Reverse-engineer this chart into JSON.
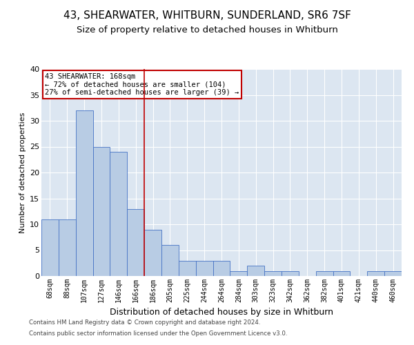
{
  "title1": "43, SHEARWATER, WHITBURN, SUNDERLAND, SR6 7SF",
  "title2": "Size of property relative to detached houses in Whitburn",
  "xlabel": "Distribution of detached houses by size in Whitburn",
  "ylabel": "Number of detached properties",
  "categories": [
    "68sqm",
    "88sqm",
    "107sqm",
    "127sqm",
    "146sqm",
    "166sqm",
    "186sqm",
    "205sqm",
    "225sqm",
    "244sqm",
    "264sqm",
    "284sqm",
    "303sqm",
    "323sqm",
    "342sqm",
    "362sqm",
    "382sqm",
    "401sqm",
    "421sqm",
    "440sqm",
    "460sqm"
  ],
  "values": [
    11,
    11,
    32,
    25,
    24,
    13,
    9,
    6,
    3,
    3,
    3,
    1,
    2,
    1,
    1,
    0,
    1,
    1,
    0,
    1,
    1
  ],
  "bar_color": "#b8cce4",
  "bar_edge_color": "#4472c4",
  "vline_x": 5.5,
  "vline_color": "#c00000",
  "annotation_line1": "43 SHEARWATER: 168sqm",
  "annotation_line2": "← 72% of detached houses are smaller (104)",
  "annotation_line3": "27% of semi-detached houses are larger (39) →",
  "annotation_box_color": "#c00000",
  "ylim": [
    0,
    40
  ],
  "yticks": [
    0,
    5,
    10,
    15,
    20,
    25,
    30,
    35,
    40
  ],
  "footer1": "Contains HM Land Registry data © Crown copyright and database right 2024.",
  "footer2": "Contains public sector information licensed under the Open Government Licence v3.0.",
  "plot_bg": "#dce6f1",
  "fig_bg": "#ffffff",
  "title1_fontsize": 11,
  "title2_fontsize": 9.5,
  "ylabel_fontsize": 8,
  "xlabel_fontsize": 9,
  "tick_fontsize": 7,
  "annotation_fontsize": 7.5,
  "footer_fontsize": 6.2
}
